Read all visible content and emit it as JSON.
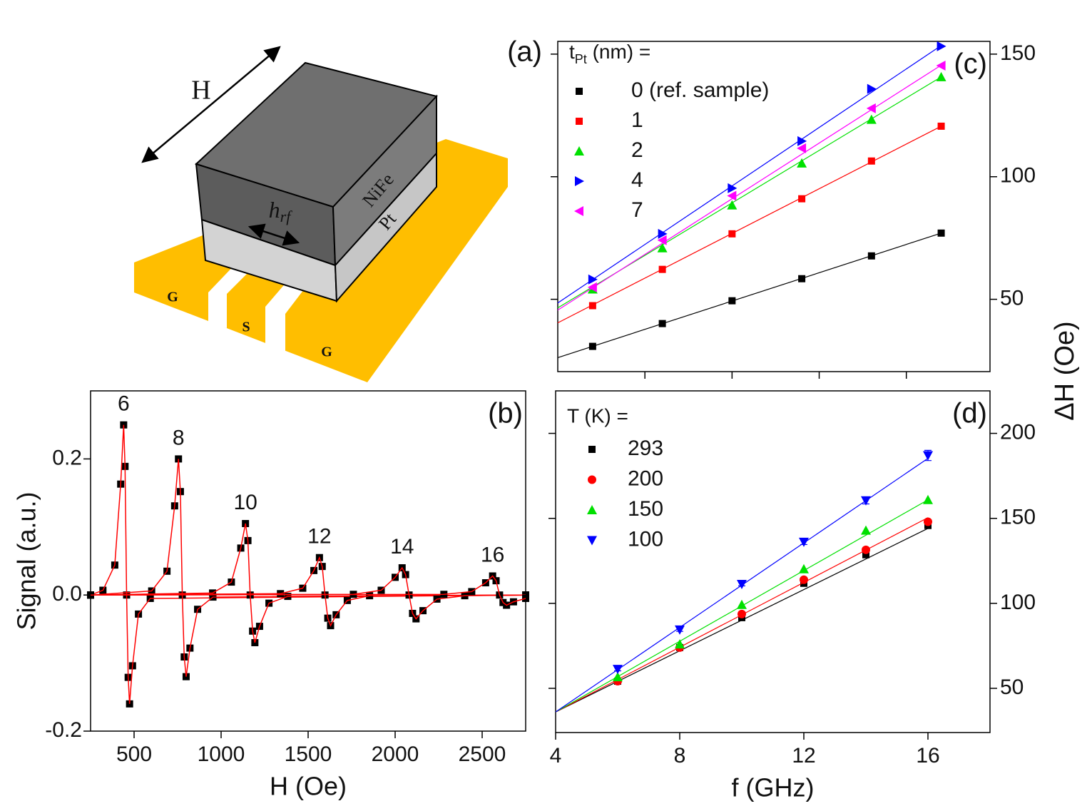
{
  "diagram": {
    "label": "(a)",
    "field": "H",
    "rf_field": {
      "main": "h",
      "sub": "rf"
    },
    "layers": [
      "NiFe",
      "Pt"
    ],
    "lines": [
      "G",
      "S",
      "G"
    ]
  },
  "figure": {
    "ylabel": "ΔH (Oe)"
  },
  "chart_data": [
    {
      "type": "line",
      "label": "(b)",
      "xlabel": "H (Oe)",
      "ylabel": "Signal (a.u.)",
      "xlim": [
        250,
        2750
      ],
      "ylim": [
        -0.2,
        0.3
      ],
      "xticks": [
        500,
        1000,
        1500,
        2000,
        2500
      ],
      "yticks": [
        -0.2,
        {
          "value": 0,
          "label": "0.0"
        },
        0.2
      ],
      "marker_color": "#000000",
      "line_color": "#ff0000",
      "series": [
        {
          "name": "6",
          "x": [
            250,
            321,
            389,
            423,
            440,
            448,
            457,
            466,
            474,
            491,
            525,
            593,
            2750
          ],
          "values": [
            0,
            0.007,
            0.044,
            0.163,
            0.25,
            0.189,
            0,
            -0.121,
            -0.16,
            -0.104,
            -0.028,
            -0.005,
            0
          ]
        },
        {
          "name": "8",
          "x": [
            250,
            601,
            689,
            733,
            755,
            766,
            777,
            788,
            799,
            821,
            865,
            953,
            2750
          ],
          "values": [
            0,
            0.006,
            0.035,
            0.131,
            0.2,
            0.152,
            0,
            -0.091,
            -0.12,
            -0.078,
            -0.021,
            -0.003,
            0
          ]
        },
        {
          "name": "10",
          "x": [
            250,
            951,
            1059,
            1113,
            1140,
            1154,
            1167,
            1181,
            1194,
            1221,
            1275,
            1383,
            2750
          ],
          "values": [
            0,
            0.003,
            0.019,
            0.069,
            0.105,
            0.08,
            0,
            -0.053,
            -0.07,
            -0.046,
            -0.012,
            -0.002,
            0
          ]
        },
        {
          "name": "12",
          "x": [
            250,
            1341,
            1469,
            1533,
            1565,
            1581,
            1597,
            1613,
            1629,
            1661,
            1725,
            1853,
            2750
          ],
          "values": [
            0,
            0.002,
            0.01,
            0.036,
            0.055,
            0.042,
            0,
            -0.034,
            -0.045,
            -0.029,
            -0.008,
            -0.001,
            0
          ]
        },
        {
          "name": "14",
          "x": [
            250,
            1760,
            1920,
            2000,
            2040,
            2060,
            2080,
            2100,
            2120,
            2160,
            2240,
            2400,
            2750
          ],
          "values": [
            0,
            0.001,
            0.007,
            0.026,
            0.04,
            0.03,
            0,
            -0.027,
            -0.035,
            -0.023,
            -0.006,
            -0.001,
            0
          ]
        },
        {
          "name": "16",
          "x": [
            250,
            2280,
            2440,
            2520,
            2560,
            2580,
            2600,
            2620,
            2640,
            2680,
            2750
          ],
          "values": [
            0,
            0.001,
            0.005,
            0.018,
            0.028,
            0.021,
            0,
            -0.011,
            -0.015,
            -0.01,
            -0.005
          ]
        }
      ]
    },
    {
      "type": "scatter",
      "label": "(c)",
      "legend_title": {
        "main": "t",
        "sub": "Pt",
        "rest": " (nm) ="
      },
      "xlim": [
        5,
        17.4
      ],
      "xticks": [
        7.5,
        10,
        12.5,
        15
      ],
      "xtick_labels": false,
      "ylim": [
        20.5,
        155.2
      ],
      "yticks": [
        50,
        100,
        150
      ],
      "yaxis_side": "right",
      "series": [
        {
          "name": "0 (ref. sample)",
          "color": "#000000",
          "marker": "square",
          "x": [
            6,
            8,
            10,
            12,
            14,
            16
          ],
          "values": [
            30.8,
            40.1,
            49.4,
            58.4,
            67.7,
            77.0
          ],
          "fit": {
            "x": [
              5,
              16
            ],
            "values": [
              26.2,
              77
            ]
          }
        },
        {
          "name": "1",
          "color": "#ff0000",
          "marker": "square",
          "x": [
            6,
            8,
            10,
            12,
            14,
            16
          ],
          "values": [
            47.4,
            62.2,
            76.7,
            91.0,
            106.4,
            120.6
          ],
          "fit": {
            "x": [
              5,
              16
            ],
            "values": [
              40.4,
              120.6
            ]
          }
        },
        {
          "name": "2",
          "color": "#00e000",
          "marker": "up",
          "x": [
            6,
            8,
            10,
            12,
            14,
            16
          ],
          "values": [
            54.1,
            70.9,
            88.4,
            105.5,
            123.3,
            140.7
          ],
          "fit": {
            "x": [
              5,
              16
            ],
            "values": [
              46.5,
              140.7
            ]
          }
        },
        {
          "name": "4",
          "color": "#0000ff",
          "marker": "right",
          "x": [
            6,
            8,
            10,
            12,
            14,
            16
          ],
          "values": [
            58.1,
            76.7,
            95.3,
            114.5,
            135.8,
            153.2
          ],
          "fit": {
            "x": [
              5,
              16
            ],
            "values": [
              48.5,
              153.5
            ]
          }
        },
        {
          "name": "7",
          "color": "#ff00ff",
          "marker": "left",
          "x": [
            6,
            8,
            10,
            12,
            14,
            16
          ],
          "values": [
            54.9,
            74.1,
            92.2,
            111.6,
            127.9,
            145.3
          ],
          "fit": {
            "x": [
              5,
              16
            ],
            "values": [
              45.6,
              145.5
            ]
          }
        }
      ]
    },
    {
      "type": "scatter",
      "label": "(d)",
      "legend_title": "T (K) =",
      "xlabel": "f (GHz)",
      "xlim": [
        4,
        18
      ],
      "xticks": [
        4,
        8,
        12,
        16
      ],
      "ylim": [
        24,
        225
      ],
      "yticks": [
        50,
        100,
        150,
        200
      ],
      "yaxis_side": "right",
      "series": [
        {
          "name": "293",
          "color": "#000000",
          "marker": "square",
          "x": [
            6,
            8,
            10,
            12,
            14,
            16
          ],
          "values": [
            54.2,
            74,
            91.6,
            111.8,
            128.6,
            145.8
          ],
          "fit": {
            "x": [
              4,
              16
            ],
            "values": [
              36.1,
              144.1
            ]
          }
        },
        {
          "name": "200",
          "color": "#ff0000",
          "marker": "circle",
          "x": [
            6,
            8,
            10,
            12,
            14,
            16
          ],
          "values": [
            54.2,
            74,
            93.7,
            113.9,
            131.5,
            148
          ],
          "fit": {
            "x": [
              4,
              16
            ],
            "values": [
              36.1,
              150.4
            ]
          }
        },
        {
          "name": "150",
          "color": "#00e000",
          "marker": "up",
          "x": [
            6,
            8,
            10,
            12,
            14,
            16
          ],
          "values": [
            56.7,
            76,
            99.2,
            120.2,
            142.9,
            160.9
          ],
          "fit": {
            "x": [
              4,
              16
            ],
            "values": [
              36.1,
              160.9
            ]
          }
        },
        {
          "name": "100",
          "color": "#0000ff",
          "marker": "down",
          "x": [
            6,
            8,
            10,
            12,
            14,
            16
          ],
          "values": [
            61.3,
            84.5,
            111.3,
            136.1,
            160.5,
            187
          ],
          "errors": [
            1,
            1,
            1,
            1.5,
            2,
            3
          ],
          "fit": {
            "x": [
              4,
              16
            ],
            "values": [
              36.1,
              185.3
            ]
          }
        }
      ]
    }
  ]
}
